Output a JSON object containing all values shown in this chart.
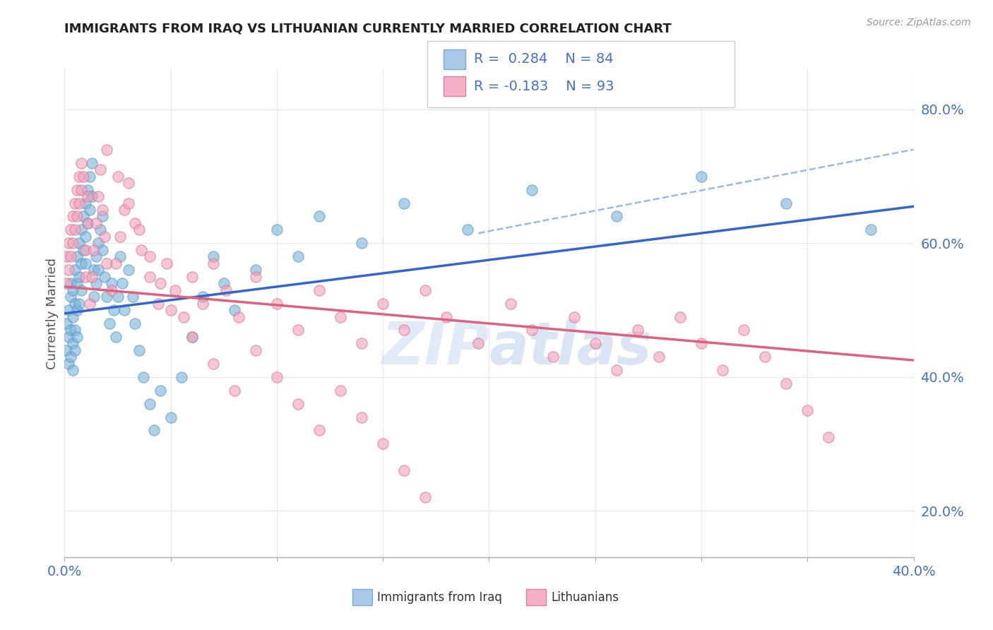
{
  "title": "IMMIGRANTS FROM IRAQ VS LITHUANIAN CURRENTLY MARRIED CORRELATION CHART",
  "source_text": "Source: ZipAtlas.com",
  "ylabel": "Currently Married",
  "right_yticks": [
    20.0,
    40.0,
    60.0,
    80.0
  ],
  "xlim": [
    0.0,
    0.4
  ],
  "ylim": [
    0.13,
    0.86
  ],
  "iraq_color": "#7ab3d9",
  "lith_color": "#f0a0b8",
  "iraq_line_color": "#3366cc",
  "lith_line_color": "#e06080",
  "dashed_line_color": "#99bbdd",
  "background_color": "#ffffff",
  "grid_color": "#e8e8e8",
  "axis_color": "#4472c4",
  "title_color": "#222222",
  "watermark_color": "#d0e4f5",
  "iraq_scatter_x": [
    0.001,
    0.001,
    0.002,
    0.002,
    0.002,
    0.003,
    0.003,
    0.003,
    0.003,
    0.004,
    0.004,
    0.004,
    0.004,
    0.005,
    0.005,
    0.005,
    0.005,
    0.006,
    0.006,
    0.006,
    0.006,
    0.007,
    0.007,
    0.007,
    0.008,
    0.008,
    0.008,
    0.009,
    0.009,
    0.01,
    0.01,
    0.01,
    0.011,
    0.011,
    0.012,
    0.012,
    0.013,
    0.013,
    0.014,
    0.014,
    0.015,
    0.015,
    0.016,
    0.016,
    0.017,
    0.018,
    0.018,
    0.019,
    0.02,
    0.021,
    0.022,
    0.023,
    0.024,
    0.025,
    0.026,
    0.027,
    0.028,
    0.03,
    0.032,
    0.033,
    0.035,
    0.037,
    0.04,
    0.042,
    0.045,
    0.05,
    0.055,
    0.06,
    0.065,
    0.07,
    0.075,
    0.08,
    0.09,
    0.1,
    0.11,
    0.12,
    0.14,
    0.16,
    0.19,
    0.22,
    0.26,
    0.3,
    0.34,
    0.38
  ],
  "iraq_scatter_y": [
    0.44,
    0.48,
    0.5,
    0.46,
    0.42,
    0.52,
    0.54,
    0.47,
    0.43,
    0.49,
    0.53,
    0.45,
    0.41,
    0.56,
    0.51,
    0.47,
    0.44,
    0.58,
    0.54,
    0.5,
    0.46,
    0.6,
    0.55,
    0.51,
    0.62,
    0.57,
    0.53,
    0.64,
    0.59,
    0.66,
    0.61,
    0.57,
    0.68,
    0.63,
    0.7,
    0.65,
    0.72,
    0.67,
    0.56,
    0.52,
    0.58,
    0.54,
    0.6,
    0.56,
    0.62,
    0.64,
    0.59,
    0.55,
    0.52,
    0.48,
    0.54,
    0.5,
    0.46,
    0.52,
    0.58,
    0.54,
    0.5,
    0.56,
    0.52,
    0.48,
    0.44,
    0.4,
    0.36,
    0.32,
    0.38,
    0.34,
    0.4,
    0.46,
    0.52,
    0.58,
    0.54,
    0.5,
    0.56,
    0.62,
    0.58,
    0.64,
    0.6,
    0.66,
    0.62,
    0.68,
    0.64,
    0.7,
    0.66,
    0.62
  ],
  "lith_scatter_x": [
    0.001,
    0.001,
    0.002,
    0.002,
    0.003,
    0.003,
    0.004,
    0.004,
    0.005,
    0.005,
    0.006,
    0.006,
    0.007,
    0.007,
    0.008,
    0.008,
    0.009,
    0.01,
    0.01,
    0.011,
    0.011,
    0.012,
    0.013,
    0.014,
    0.015,
    0.016,
    0.017,
    0.018,
    0.019,
    0.02,
    0.022,
    0.024,
    0.026,
    0.028,
    0.03,
    0.033,
    0.036,
    0.04,
    0.044,
    0.048,
    0.052,
    0.056,
    0.06,
    0.065,
    0.07,
    0.076,
    0.082,
    0.09,
    0.1,
    0.11,
    0.12,
    0.13,
    0.14,
    0.15,
    0.16,
    0.17,
    0.18,
    0.195,
    0.21,
    0.22,
    0.23,
    0.24,
    0.25,
    0.26,
    0.27,
    0.28,
    0.29,
    0.3,
    0.31,
    0.32,
    0.33,
    0.34,
    0.35,
    0.36,
    0.02,
    0.025,
    0.03,
    0.035,
    0.04,
    0.045,
    0.05,
    0.06,
    0.07,
    0.08,
    0.09,
    0.1,
    0.11,
    0.12,
    0.13,
    0.14,
    0.15,
    0.16,
    0.17
  ],
  "lith_scatter_y": [
    0.54,
    0.58,
    0.56,
    0.6,
    0.58,
    0.62,
    0.6,
    0.64,
    0.62,
    0.66,
    0.64,
    0.68,
    0.66,
    0.7,
    0.68,
    0.72,
    0.7,
    0.55,
    0.59,
    0.63,
    0.67,
    0.51,
    0.55,
    0.59,
    0.63,
    0.67,
    0.71,
    0.65,
    0.61,
    0.57,
    0.53,
    0.57,
    0.61,
    0.65,
    0.69,
    0.63,
    0.59,
    0.55,
    0.51,
    0.57,
    0.53,
    0.49,
    0.55,
    0.51,
    0.57,
    0.53,
    0.49,
    0.55,
    0.51,
    0.47,
    0.53,
    0.49,
    0.45,
    0.51,
    0.47,
    0.53,
    0.49,
    0.45,
    0.51,
    0.47,
    0.43,
    0.49,
    0.45,
    0.41,
    0.47,
    0.43,
    0.49,
    0.45,
    0.41,
    0.47,
    0.43,
    0.39,
    0.35,
    0.31,
    0.74,
    0.7,
    0.66,
    0.62,
    0.58,
    0.54,
    0.5,
    0.46,
    0.42,
    0.38,
    0.44,
    0.4,
    0.36,
    0.32,
    0.38,
    0.34,
    0.3,
    0.26,
    0.22
  ],
  "iraq_line": {
    "x0": 0.0,
    "y0": 0.495,
    "x1": 0.4,
    "y1": 0.655
  },
  "lith_line": {
    "x0": 0.0,
    "y0": 0.535,
    "x1": 0.4,
    "y1": 0.425
  },
  "dash_line": {
    "x0": 0.195,
    "y0": 0.615,
    "x1": 0.4,
    "y1": 0.74
  }
}
